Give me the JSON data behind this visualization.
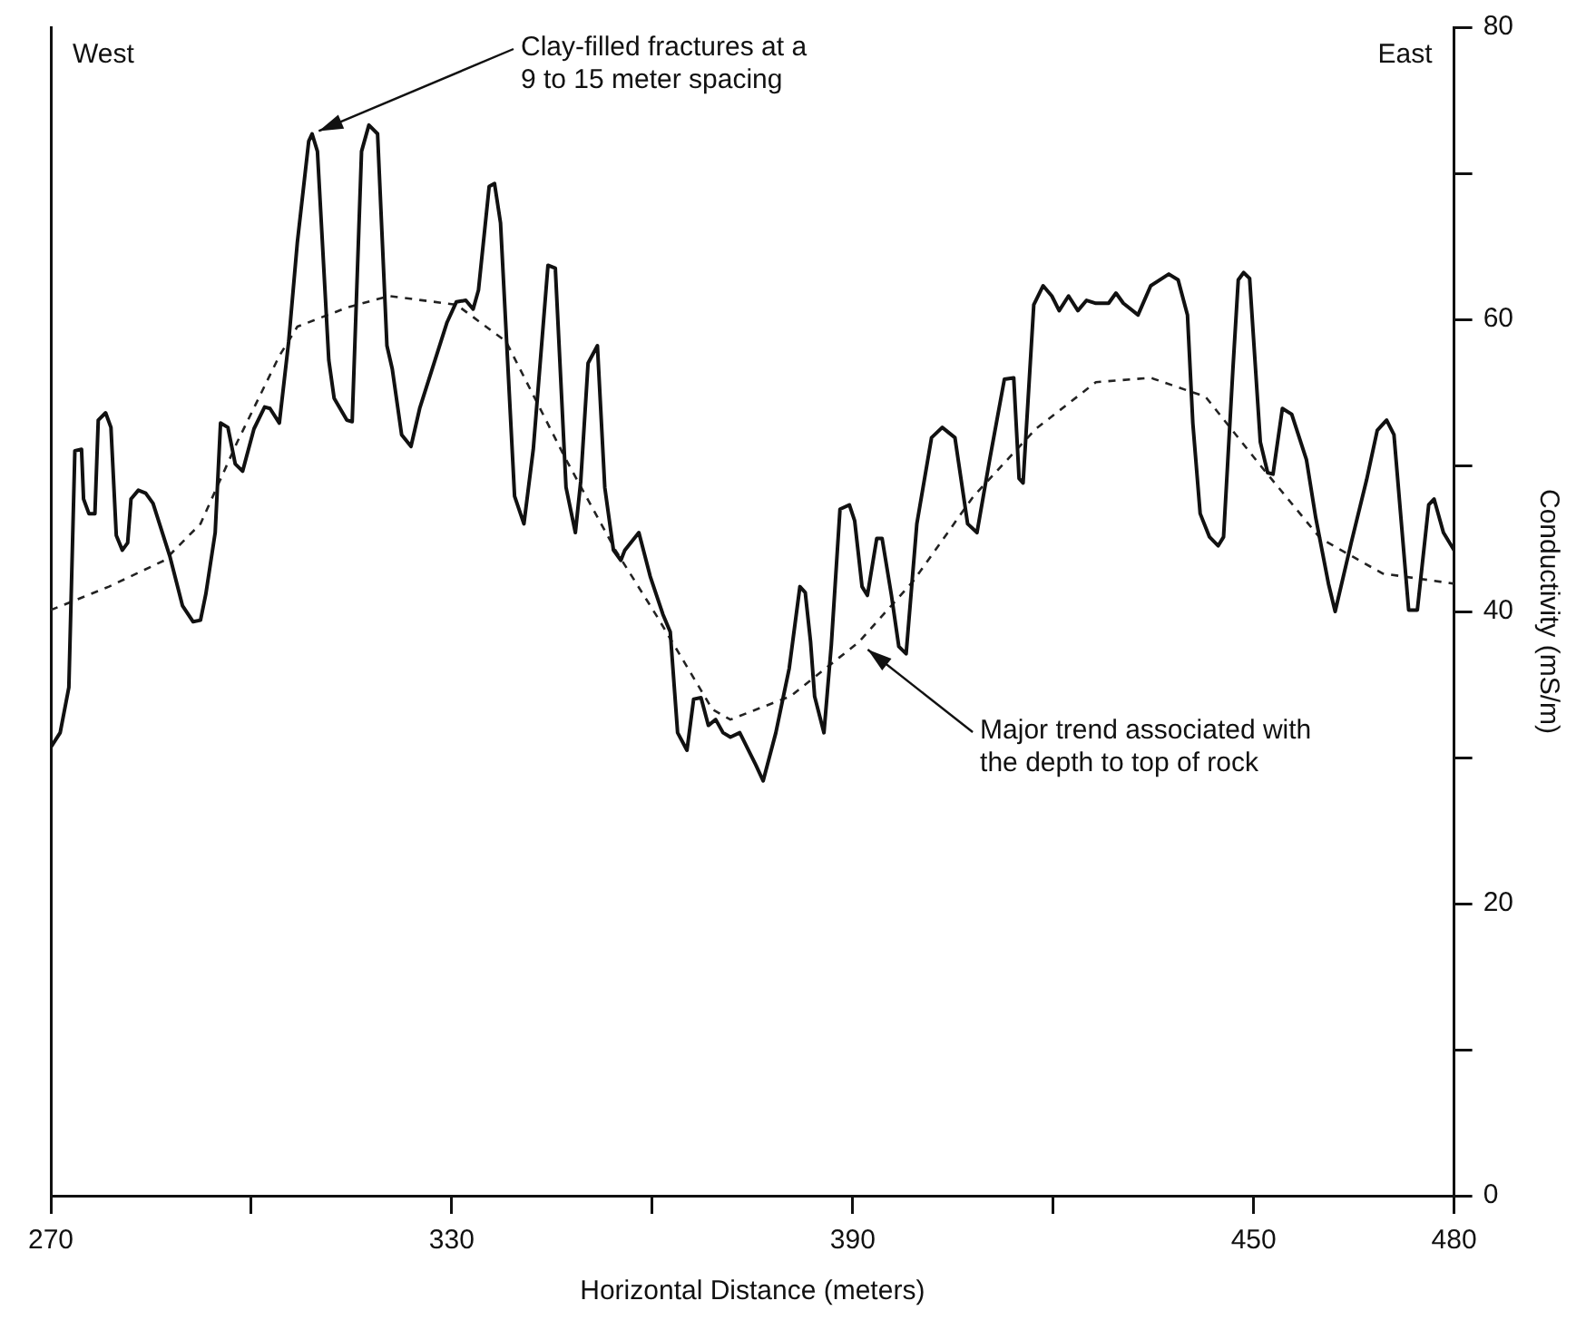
{
  "chart_data": {
    "type": "line",
    "xlabel": "Horizontal Distance (meters)",
    "ylabel": "Conductivity (mS/m)",
    "xlim": [
      270,
      480
    ],
    "xticks": [
      270,
      {
        "value": 300,
        "label": null
      },
      330,
      {
        "value": 360,
        "label": null
      },
      390,
      {
        "value": 420,
        "label": null
      },
      450,
      480
    ],
    "ylim": [
      0,
      80
    ],
    "yticks": [
      0,
      {
        "value": 10,
        "label": null
      },
      20,
      {
        "value": 30,
        "label": null
      },
      40,
      {
        "value": 50,
        "label": null
      },
      60,
      {
        "value": 70,
        "label": null
      },
      80
    ],
    "grid": false,
    "legend": false,
    "marker": "none",
    "series": [
      {
        "color": "#111111",
        "line_style": "solid",
        "x": [
          270,
          271.4,
          272.7,
          273.6,
          274.6,
          274.9,
          275.7,
          276.6,
          277.1,
          278.2,
          279.0,
          279.8,
          280.7,
          281.5,
          282.0,
          283.1,
          284.2,
          285.3,
          287.8,
          289.7,
          291.3,
          292.4,
          293.2,
          294.6,
          295.4,
          296.5,
          297.6,
          298.7,
          300.4,
          302.0,
          302.8,
          304.2,
          305.6,
          306.9,
          308.6,
          309.1,
          309.9,
          311.6,
          312.4,
          314.3,
          315.1,
          316.5,
          317.6,
          318.9,
          320.3,
          321.1,
          322.5,
          323.9,
          325.2,
          329.3,
          330.7,
          332.1,
          333.2,
          334.0,
          335.6,
          336.4,
          337.3,
          339.4,
          340.8,
          342.2,
          344.4,
          345.5,
          347.1,
          348.5,
          349.3,
          350.4,
          351.8,
          352.9,
          354.2,
          355.3,
          355.9,
          358.0,
          359.7,
          361.6,
          362.7,
          363.8,
          365.2,
          366.2,
          367.3,
          368.4,
          369.5,
          370.6,
          371.7,
          373.1,
          375.5,
          376.6,
          378.5,
          380.5,
          382.1,
          382.9,
          383.7,
          384.3,
          385.7,
          386.8,
          388.1,
          389.5,
          390.3,
          391.4,
          392.2,
          393.6,
          394.4,
          395.8,
          396.9,
          398.0,
          399.6,
          401.8,
          403.4,
          405.3,
          407.2,
          408.6,
          410.5,
          412.7,
          414.1,
          414.9,
          415.5,
          417.1,
          418.5,
          419.8,
          420.9,
          422.3,
          423.7,
          425.0,
          426.4,
          428.3,
          429.4,
          430.5,
          432.7,
          434.6,
          437.3,
          438.7,
          440.1,
          440.9,
          442.0,
          443.4,
          444.7,
          445.5,
          446.9,
          447.7,
          448.5,
          449.4,
          451.0,
          452.1,
          452.9,
          454.3,
          455.7,
          457.9,
          459.3,
          461.2,
          462.2,
          464.6,
          466.9,
          468.5,
          469.9,
          471.0,
          473.2,
          474.5,
          476.2,
          477.0,
          478.4,
          480
        ],
        "values": [
          30.7,
          31.7,
          34.8,
          51.0,
          51.1,
          47.7,
          46.7,
          46.7,
          53.1,
          53.6,
          52.6,
          45.2,
          44.2,
          44.7,
          47.7,
          48.3,
          48.1,
          47.4,
          43.8,
          40.4,
          39.3,
          39.4,
          41.2,
          45.4,
          52.9,
          52.6,
          50.1,
          49.6,
          52.5,
          54.0,
          53.9,
          52.9,
          58.5,
          65.3,
          72.2,
          72.7,
          71.5,
          57.2,
          54.6,
          53.1,
          53.0,
          71.5,
          73.3,
          72.7,
          58.2,
          56.6,
          52.1,
          51.3,
          53.9,
          59.8,
          61.2,
          61.3,
          60.7,
          62.0,
          69.1,
          69.3,
          66.6,
          47.9,
          46.0,
          51.1,
          63.7,
          63.5,
          48.5,
          45.4,
          48.9,
          57.0,
          58.2,
          48.5,
          44.2,
          43.5,
          44.2,
          45.4,
          42.4,
          39.8,
          38.6,
          31.7,
          30.5,
          34.0,
          34.1,
          32.2,
          32.6,
          31.7,
          31.4,
          31.7,
          29.5,
          28.4,
          31.7,
          36.1,
          41.7,
          41.3,
          37.9,
          34.2,
          31.7,
          37.7,
          47.0,
          47.3,
          46.2,
          41.7,
          41.1,
          45.0,
          45.0,
          41.1,
          37.6,
          37.1,
          46.0,
          51.9,
          52.6,
          51.9,
          46.0,
          45.4,
          50.4,
          55.9,
          56.0,
          49.1,
          48.8,
          61.0,
          62.3,
          61.6,
          60.6,
          61.6,
          60.6,
          61.3,
          61.1,
          61.1,
          61.8,
          61.1,
          60.3,
          62.3,
          63.1,
          62.7,
          60.3,
          52.9,
          46.7,
          45.1,
          44.5,
          45.1,
          56.6,
          62.7,
          63.2,
          62.8,
          51.6,
          49.5,
          49.4,
          53.9,
          53.5,
          50.4,
          46.4,
          41.9,
          40.0,
          44.7,
          49.0,
          52.4,
          53.1,
          52.1,
          40.1,
          40.1,
          47.3,
          47.7,
          45.4,
          44.2
        ]
      },
      {
        "color": "#222222",
        "line_style": "dashed",
        "x": [
          270,
          278.7,
          287.0,
          292.4,
          297.9,
          304.2,
          306.9,
          314.3,
          320.6,
          330.7,
          338.1,
          347.1,
          354.5,
          360.8,
          369.0,
          371.7,
          380.7,
          390.9,
          399.1,
          408.1,
          417.4,
          426.4,
          434.6,
          442.8,
          451.0,
          460.0,
          469.3,
          480
        ],
        "values": [
          40.1,
          41.7,
          43.5,
          46.0,
          51.6,
          57.5,
          59.5,
          60.8,
          61.6,
          61.0,
          58.5,
          50.4,
          44.2,
          39.6,
          33.3,
          32.6,
          34.2,
          37.9,
          42.1,
          47.9,
          52.5,
          55.7,
          56.0,
          54.7,
          50.0,
          45.0,
          42.6,
          41.9
        ]
      }
    ],
    "annotations": [
      "West",
      "East",
      {
        "text": "Clay-filled fractures at a\n9 to 15 meter spacing",
        "x": 309.1,
        "y": 72.7
      },
      {
        "text": "Major trend associated with\nthe depth to top of rock",
        "x": 391.4,
        "y": 37.7
      }
    ]
  }
}
